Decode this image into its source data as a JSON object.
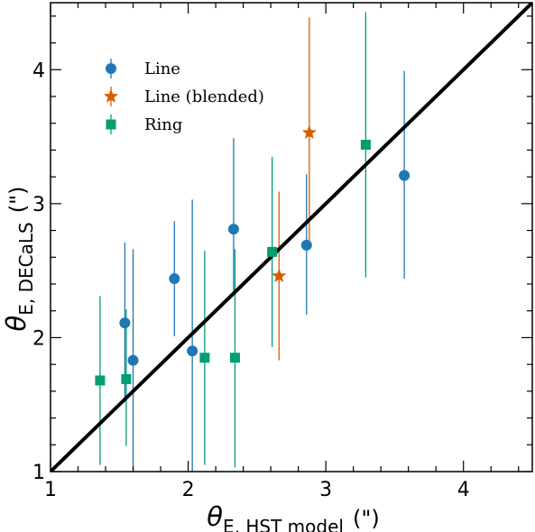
{
  "chart_data": {
    "type": "scatter",
    "xlabel": {
      "symbol": "θ",
      "subscript": "E, HST model",
      "unit": "(\")"
    },
    "ylabel": {
      "symbol": "θ",
      "subscript": "E, DECaLS",
      "unit": "(\")"
    },
    "xlim": [
      1,
      4.5
    ],
    "ylim": [
      1,
      4.5
    ],
    "xticks": [
      1,
      2,
      3,
      4
    ],
    "yticks": [
      1,
      2,
      3,
      4
    ],
    "grid": false,
    "legend_position": "top-left",
    "reference_line": {
      "x": [
        1,
        4.5
      ],
      "y": [
        1,
        4.5
      ],
      "color": "#000000"
    },
    "series": [
      {
        "name": "Line",
        "marker": "circle",
        "color": "#1f77b4",
        "points": [
          {
            "x": 1.54,
            "y": 2.11,
            "ylo": 1.52,
            "yhi": 2.71
          },
          {
            "x": 1.6,
            "y": 1.83,
            "ylo": 1.0,
            "yhi": 2.66
          },
          {
            "x": 1.9,
            "y": 2.44,
            "ylo": 2.01,
            "yhi": 2.87
          },
          {
            "x": 2.03,
            "y": 1.9,
            "ylo": 1.0,
            "yhi": 3.03
          },
          {
            "x": 2.33,
            "y": 2.81,
            "ylo": 2.33,
            "yhi": 3.49
          },
          {
            "x": 2.86,
            "y": 2.69,
            "ylo": 2.17,
            "yhi": 3.22
          },
          {
            "x": 3.57,
            "y": 3.21,
            "ylo": 2.44,
            "yhi": 3.99
          }
        ]
      },
      {
        "name": "Line (blended)",
        "marker": "star",
        "color": "#d55e00",
        "points": [
          {
            "x": 2.66,
            "y": 2.46,
            "ylo": 1.83,
            "yhi": 3.09
          },
          {
            "x": 2.88,
            "y": 3.53,
            "ylo": 2.66,
            "yhi": 4.39
          }
        ]
      },
      {
        "name": "Ring",
        "marker": "square",
        "color": "#009e73",
        "points": [
          {
            "x": 1.36,
            "y": 1.68,
            "ylo": 1.05,
            "yhi": 2.31
          },
          {
            "x": 1.55,
            "y": 1.69,
            "ylo": 1.19,
            "yhi": 2.21
          },
          {
            "x": 2.12,
            "y": 1.85,
            "ylo": 1.05,
            "yhi": 2.65
          },
          {
            "x": 2.34,
            "y": 1.85,
            "ylo": 1.03,
            "yhi": 2.66
          },
          {
            "x": 2.61,
            "y": 2.64,
            "ylo": 1.93,
            "yhi": 3.35
          },
          {
            "x": 3.29,
            "y": 3.44,
            "ylo": 2.45,
            "yhi": 4.43
          }
        ]
      }
    ]
  }
}
